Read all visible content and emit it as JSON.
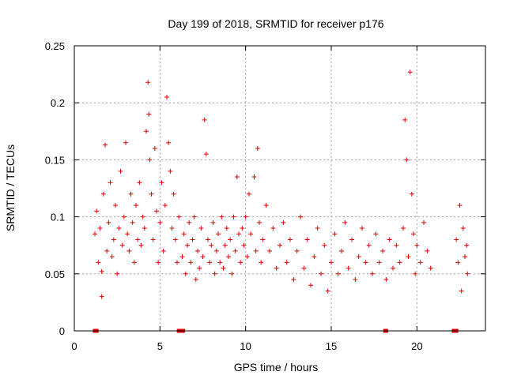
{
  "chart_data": {
    "type": "scatter",
    "title": "Day 199 of 2018, SRMTID for receiver p176",
    "xlabel": "GPS time / hours",
    "ylabel": "SRMTID / TECUs",
    "xlim": [
      0,
      24
    ],
    "ylim": [
      0,
      0.25
    ],
    "xticks": [
      0,
      5,
      10,
      15,
      20
    ],
    "xtick_labels": [
      "0",
      "5",
      "10",
      "15",
      "20"
    ],
    "yticks": [
      0,
      0.05,
      0.1,
      0.15,
      0.2,
      0.25
    ],
    "ytick_labels": [
      "0",
      "0.05",
      "0.1",
      "0.15",
      "0.2",
      "0.25"
    ],
    "grid": true,
    "series": [
      {
        "name": "SRMTID",
        "color": "#e00000",
        "marker": "+",
        "points": [
          [
            1.2,
            0.085
          ],
          [
            1.3,
            0.105
          ],
          [
            1.4,
            0.06
          ],
          [
            1.5,
            0.09
          ],
          [
            1.6,
            0.03
          ],
          [
            1.6,
            0.052
          ],
          [
            1.7,
            0.12
          ],
          [
            1.8,
            0.163
          ],
          [
            1.9,
            0.07
          ],
          [
            2.0,
            0.095
          ],
          [
            2.1,
            0.13
          ],
          [
            2.2,
            0.065
          ],
          [
            2.3,
            0.08
          ],
          [
            2.4,
            0.11
          ],
          [
            2.5,
            0.05
          ],
          [
            2.6,
            0.09
          ],
          [
            2.7,
            0.14
          ],
          [
            2.8,
            0.075
          ],
          [
            2.9,
            0.1
          ],
          [
            3.0,
            0.165
          ],
          [
            3.1,
            0.085
          ],
          [
            3.2,
            0.07
          ],
          [
            3.3,
            0.12
          ],
          [
            3.4,
            0.095
          ],
          [
            3.5,
            0.06
          ],
          [
            3.6,
            0.11
          ],
          [
            3.7,
            0.08
          ],
          [
            3.8,
            0.13
          ],
          [
            3.9,
            0.075
          ],
          [
            4.0,
            0.1
          ],
          [
            4.1,
            0.09
          ],
          [
            4.2,
            0.175
          ],
          [
            4.3,
            0.218
          ],
          [
            4.35,
            0.19
          ],
          [
            4.4,
            0.15
          ],
          [
            4.5,
            0.12
          ],
          [
            4.6,
            0.08
          ],
          [
            4.7,
            0.16
          ],
          [
            4.8,
            0.105
          ],
          [
            4.9,
            0.06
          ],
          [
            5.0,
            0.095
          ],
          [
            5.1,
            0.13
          ],
          [
            5.2,
            0.07
          ],
          [
            5.3,
            0.11
          ],
          [
            5.4,
            0.205
          ],
          [
            5.5,
            0.165
          ],
          [
            5.6,
            0.14
          ],
          [
            5.7,
            0.09
          ],
          [
            5.8,
            0.12
          ],
          [
            5.9,
            0.08
          ],
          [
            6.0,
            0.06
          ],
          [
            6.1,
            0.1
          ],
          [
            6.3,
            0.065
          ],
          [
            6.4,
            0.085
          ],
          [
            6.5,
            0.05
          ],
          [
            6.6,
            0.075
          ],
          [
            6.7,
            0.095
          ],
          [
            6.8,
            0.06
          ],
          [
            6.9,
            0.08
          ],
          [
            7.0,
            0.1
          ],
          [
            7.1,
            0.045
          ],
          [
            7.2,
            0.07
          ],
          [
            7.3,
            0.055
          ],
          [
            7.4,
            0.09
          ],
          [
            7.5,
            0.065
          ],
          [
            7.6,
            0.185
          ],
          [
            7.7,
            0.155
          ],
          [
            7.8,
            0.08
          ],
          [
            7.9,
            0.06
          ],
          [
            8.0,
            0.075
          ],
          [
            8.1,
            0.095
          ],
          [
            8.2,
            0.05
          ],
          [
            8.3,
            0.07
          ],
          [
            8.4,
            0.085
          ],
          [
            8.5,
            0.06
          ],
          [
            8.6,
            0.1
          ],
          [
            8.7,
            0.055
          ],
          [
            8.8,
            0.075
          ],
          [
            8.9,
            0.09
          ],
          [
            9.0,
            0.065
          ],
          [
            9.1,
            0.08
          ],
          [
            9.2,
            0.05
          ],
          [
            9.3,
            0.1
          ],
          [
            9.4,
            0.07
          ],
          [
            9.5,
            0.135
          ],
          [
            9.6,
            0.085
          ],
          [
            9.7,
            0.06
          ],
          [
            9.8,
            0.09
          ],
          [
            9.9,
            0.075
          ],
          [
            10.0,
            0.1
          ],
          [
            10.1,
            0.065
          ],
          [
            10.2,
            0.12
          ],
          [
            10.3,
            0.085
          ],
          [
            10.5,
            0.135
          ],
          [
            10.6,
            0.07
          ],
          [
            10.7,
            0.16
          ],
          [
            10.8,
            0.095
          ],
          [
            10.9,
            0.06
          ],
          [
            11.0,
            0.08
          ],
          [
            11.2,
            0.11
          ],
          [
            11.4,
            0.07
          ],
          [
            11.6,
            0.09
          ],
          [
            11.8,
            0.055
          ],
          [
            12.0,
            0.075
          ],
          [
            12.2,
            0.095
          ],
          [
            12.4,
            0.06
          ],
          [
            12.6,
            0.08
          ],
          [
            12.8,
            0.045
          ],
          [
            13.0,
            0.07
          ],
          [
            13.2,
            0.1
          ],
          [
            13.4,
            0.055
          ],
          [
            13.6,
            0.08
          ],
          [
            13.8,
            0.04
          ],
          [
            14.0,
            0.065
          ],
          [
            14.2,
            0.09
          ],
          [
            14.4,
            0.05
          ],
          [
            14.6,
            0.075
          ],
          [
            14.8,
            0.035
          ],
          [
            15.0,
            0.06
          ],
          [
            15.2,
            0.085
          ],
          [
            15.4,
            0.05
          ],
          [
            15.6,
            0.07
          ],
          [
            15.8,
            0.095
          ],
          [
            16.0,
            0.055
          ],
          [
            16.2,
            0.08
          ],
          [
            16.4,
            0.045
          ],
          [
            16.6,
            0.065
          ],
          [
            16.8,
            0.09
          ],
          [
            17.0,
            0.06
          ],
          [
            17.2,
            0.075
          ],
          [
            17.4,
            0.05
          ],
          [
            17.6,
            0.085
          ],
          [
            17.8,
            0.06
          ],
          [
            18.0,
            0.07
          ],
          [
            18.2,
            0.045
          ],
          [
            18.4,
            0.08
          ],
          [
            18.6,
            0.055
          ],
          [
            18.8,
            0.075
          ],
          [
            19.0,
            0.06
          ],
          [
            19.2,
            0.09
          ],
          [
            19.3,
            0.185
          ],
          [
            19.4,
            0.15
          ],
          [
            19.5,
            0.065
          ],
          [
            19.6,
            0.227
          ],
          [
            19.7,
            0.12
          ],
          [
            19.8,
            0.085
          ],
          [
            19.9,
            0.05
          ],
          [
            20.0,
            0.075
          ],
          [
            20.2,
            0.06
          ],
          [
            20.4,
            0.095
          ],
          [
            20.6,
            0.07
          ],
          [
            20.8,
            0.055
          ],
          [
            22.3,
            0.08
          ],
          [
            22.4,
            0.06
          ],
          [
            22.5,
            0.11
          ],
          [
            22.6,
            0.035
          ],
          [
            22.7,
            0.09
          ],
          [
            22.8,
            0.065
          ],
          [
            22.9,
            0.075
          ],
          [
            22.95,
            0.05
          ]
        ]
      }
    ],
    "gaps": [
      {
        "x_start": 1.2,
        "x_end": 1.3,
        "y": 0
      },
      {
        "x_start": 6.1,
        "x_end": 6.35,
        "y": 0
      },
      {
        "x_start": 18.15,
        "x_end": 18.2,
        "y": 0
      },
      {
        "x_start": 22.15,
        "x_end": 22.3,
        "y": 0
      }
    ]
  }
}
